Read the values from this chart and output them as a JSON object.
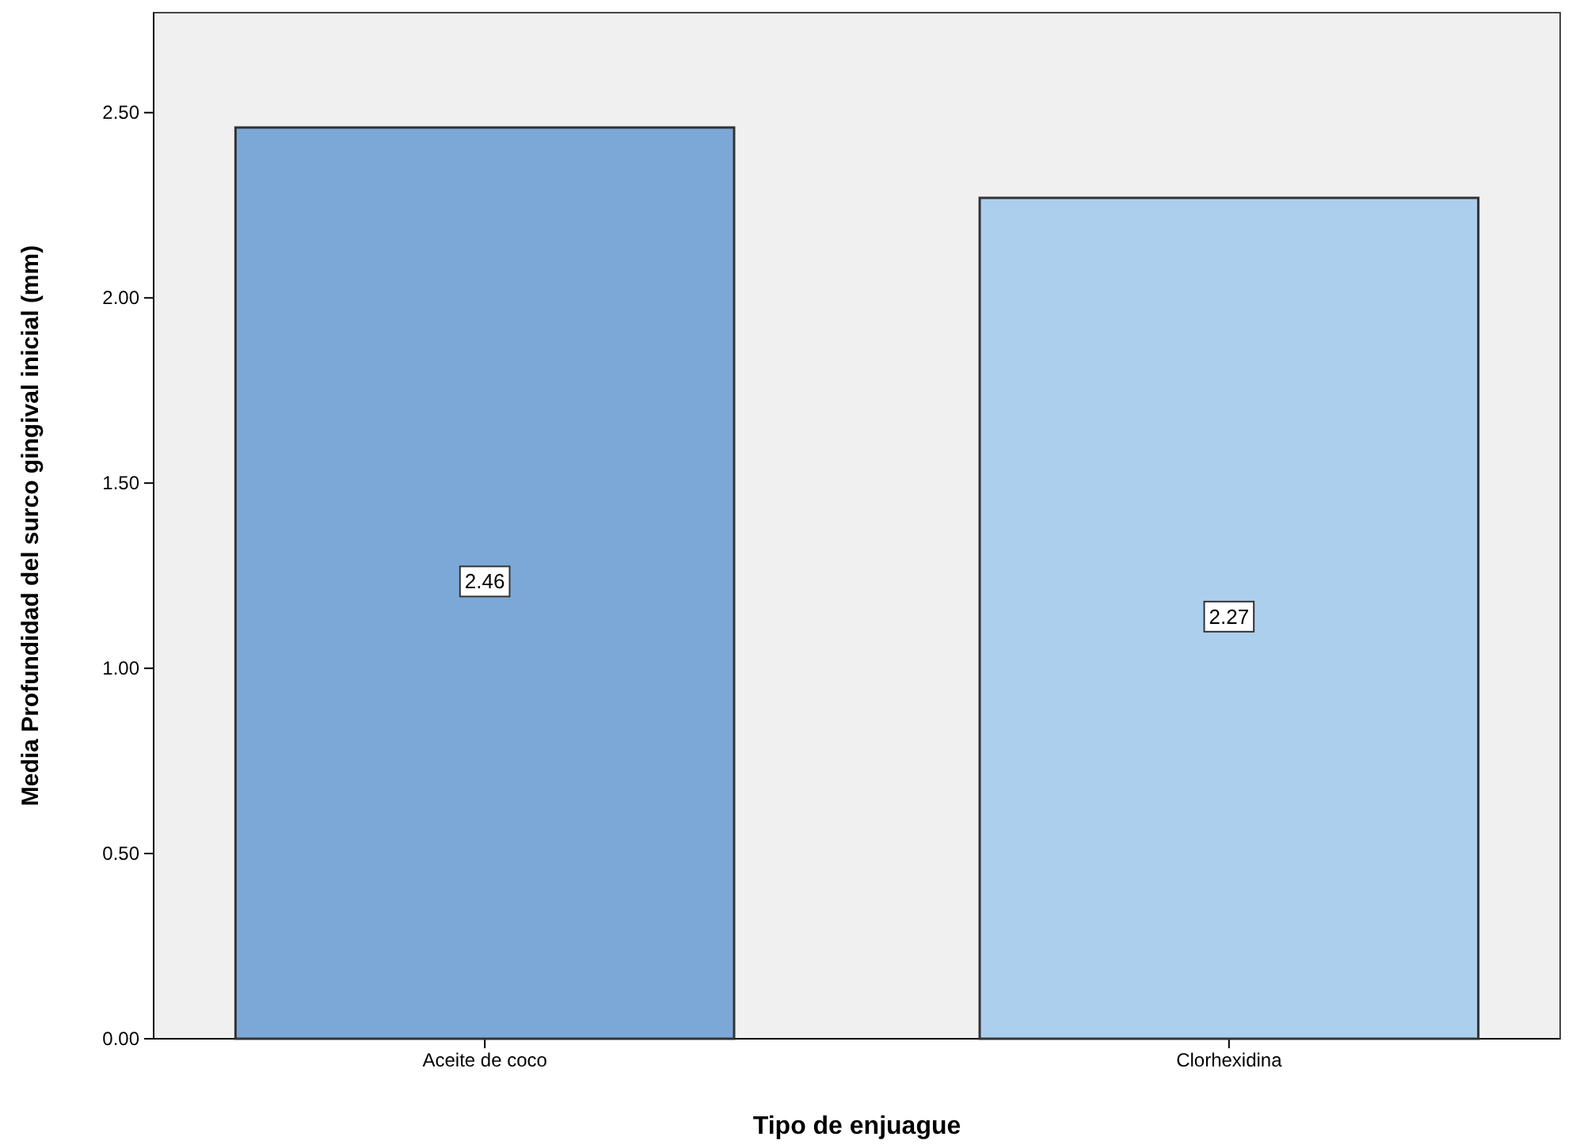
{
  "chart_data": {
    "type": "bar",
    "xlabel": "Tipo de enjuague",
    "ylabel": "Media Profundidad del surco gingival inicial (mm)",
    "categories": [
      "Aceite de coco",
      "Clorhexidina"
    ],
    "values": [
      2.46,
      2.27
    ],
    "colors": [
      "#7ba8d6",
      "#accfed"
    ],
    "ylim": [
      0,
      2.77
    ],
    "yticks": [
      {
        "value": 0,
        "label": "0.00"
      },
      {
        "value": 0.5,
        "label": "0.50"
      },
      {
        "value": 1,
        "label": "1.00"
      },
      {
        "value": 1.5,
        "label": "1.50"
      },
      {
        "value": 2,
        "label": "2.00"
      },
      {
        "value": 2.5,
        "label": "2.50"
      }
    ],
    "data_labels": true
  }
}
